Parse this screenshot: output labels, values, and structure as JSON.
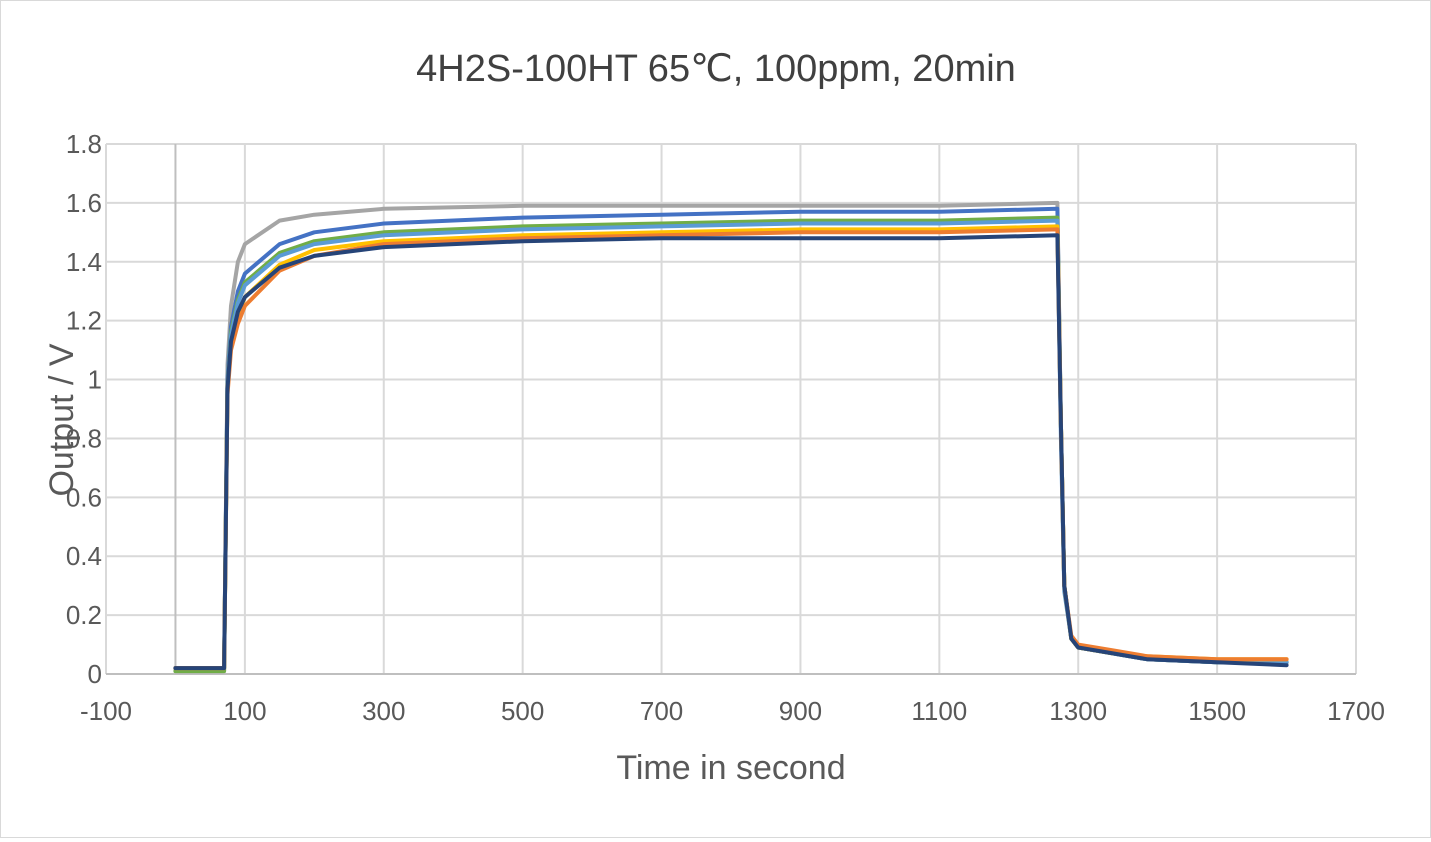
{
  "chart_data": {
    "type": "line",
    "title": "4H2S-100HT 65℃, 100ppm, 20min",
    "xlabel": "Time in second",
    "ylabel": "Output / V",
    "xlim": [
      -100,
      1700
    ],
    "ylim": [
      0,
      1.8
    ],
    "x_ticks": [
      -100,
      100,
      300,
      500,
      700,
      900,
      1100,
      1300,
      1500,
      1700
    ],
    "y_ticks": [
      0,
      0.2,
      0.4,
      0.6,
      0.8,
      1,
      1.2,
      1.4,
      1.6,
      1.8
    ],
    "x_tick_labels": [
      "-100",
      "100",
      "300",
      "500",
      "700",
      "900",
      "1100",
      "1300",
      "1500",
      "1700"
    ],
    "y_tick_labels": [
      "0",
      "0.2",
      "0.4",
      "0.6",
      "0.8",
      "1",
      "1.2",
      "1.4",
      "1.6",
      "1.8"
    ],
    "grid": true,
    "legend": "none",
    "x": [
      0,
      70,
      75,
      80,
      90,
      100,
      150,
      200,
      300,
      500,
      700,
      900,
      1100,
      1270,
      1275,
      1280,
      1290,
      1300,
      1350,
      1400,
      1500,
      1600
    ],
    "series": [
      {
        "color": "#a5a5a5",
        "values": [
          0.01,
          0.01,
          1.05,
          1.25,
          1.4,
          1.46,
          1.54,
          1.56,
          1.58,
          1.59,
          1.59,
          1.59,
          1.59,
          1.6,
          0.85,
          0.3,
          0.12,
          0.09,
          0.07,
          0.05,
          0.04,
          0.04
        ]
      },
      {
        "color": "#4472c4",
        "values": [
          0.02,
          0.02,
          1.0,
          1.18,
          1.3,
          1.36,
          1.46,
          1.5,
          1.53,
          1.55,
          1.56,
          1.57,
          1.57,
          1.58,
          0.85,
          0.3,
          0.12,
          0.09,
          0.07,
          0.05,
          0.04,
          0.04
        ]
      },
      {
        "color": "#70ad47",
        "values": [
          0.01,
          0.01,
          0.98,
          1.16,
          1.27,
          1.33,
          1.43,
          1.47,
          1.5,
          1.52,
          1.53,
          1.54,
          1.54,
          1.55,
          0.85,
          0.3,
          0.12,
          0.09,
          0.07,
          0.05,
          0.04,
          0.04
        ]
      },
      {
        "color": "#5b9bd5",
        "values": [
          0.02,
          0.02,
          0.98,
          1.15,
          1.26,
          1.32,
          1.42,
          1.46,
          1.49,
          1.51,
          1.52,
          1.53,
          1.53,
          1.54,
          0.8,
          0.28,
          0.12,
          0.09,
          0.07,
          0.05,
          0.04,
          0.04
        ]
      },
      {
        "color": "#ffc000",
        "values": [
          0.02,
          0.02,
          0.97,
          1.12,
          1.22,
          1.28,
          1.39,
          1.44,
          1.47,
          1.49,
          1.5,
          1.51,
          1.51,
          1.52,
          0.85,
          0.3,
          0.12,
          0.09,
          0.07,
          0.06,
          0.05,
          0.05
        ]
      },
      {
        "color": "#ed7d31",
        "values": [
          0.02,
          0.02,
          0.95,
          1.1,
          1.19,
          1.25,
          1.37,
          1.42,
          1.46,
          1.48,
          1.49,
          1.5,
          1.5,
          1.51,
          0.85,
          0.3,
          0.13,
          0.1,
          0.08,
          0.06,
          0.05,
          0.05
        ]
      },
      {
        "color": "#264478",
        "values": [
          0.02,
          0.02,
          0.97,
          1.13,
          1.23,
          1.28,
          1.38,
          1.42,
          1.45,
          1.47,
          1.48,
          1.48,
          1.48,
          1.49,
          0.85,
          0.3,
          0.12,
          0.09,
          0.07,
          0.05,
          0.04,
          0.03
        ]
      }
    ]
  }
}
